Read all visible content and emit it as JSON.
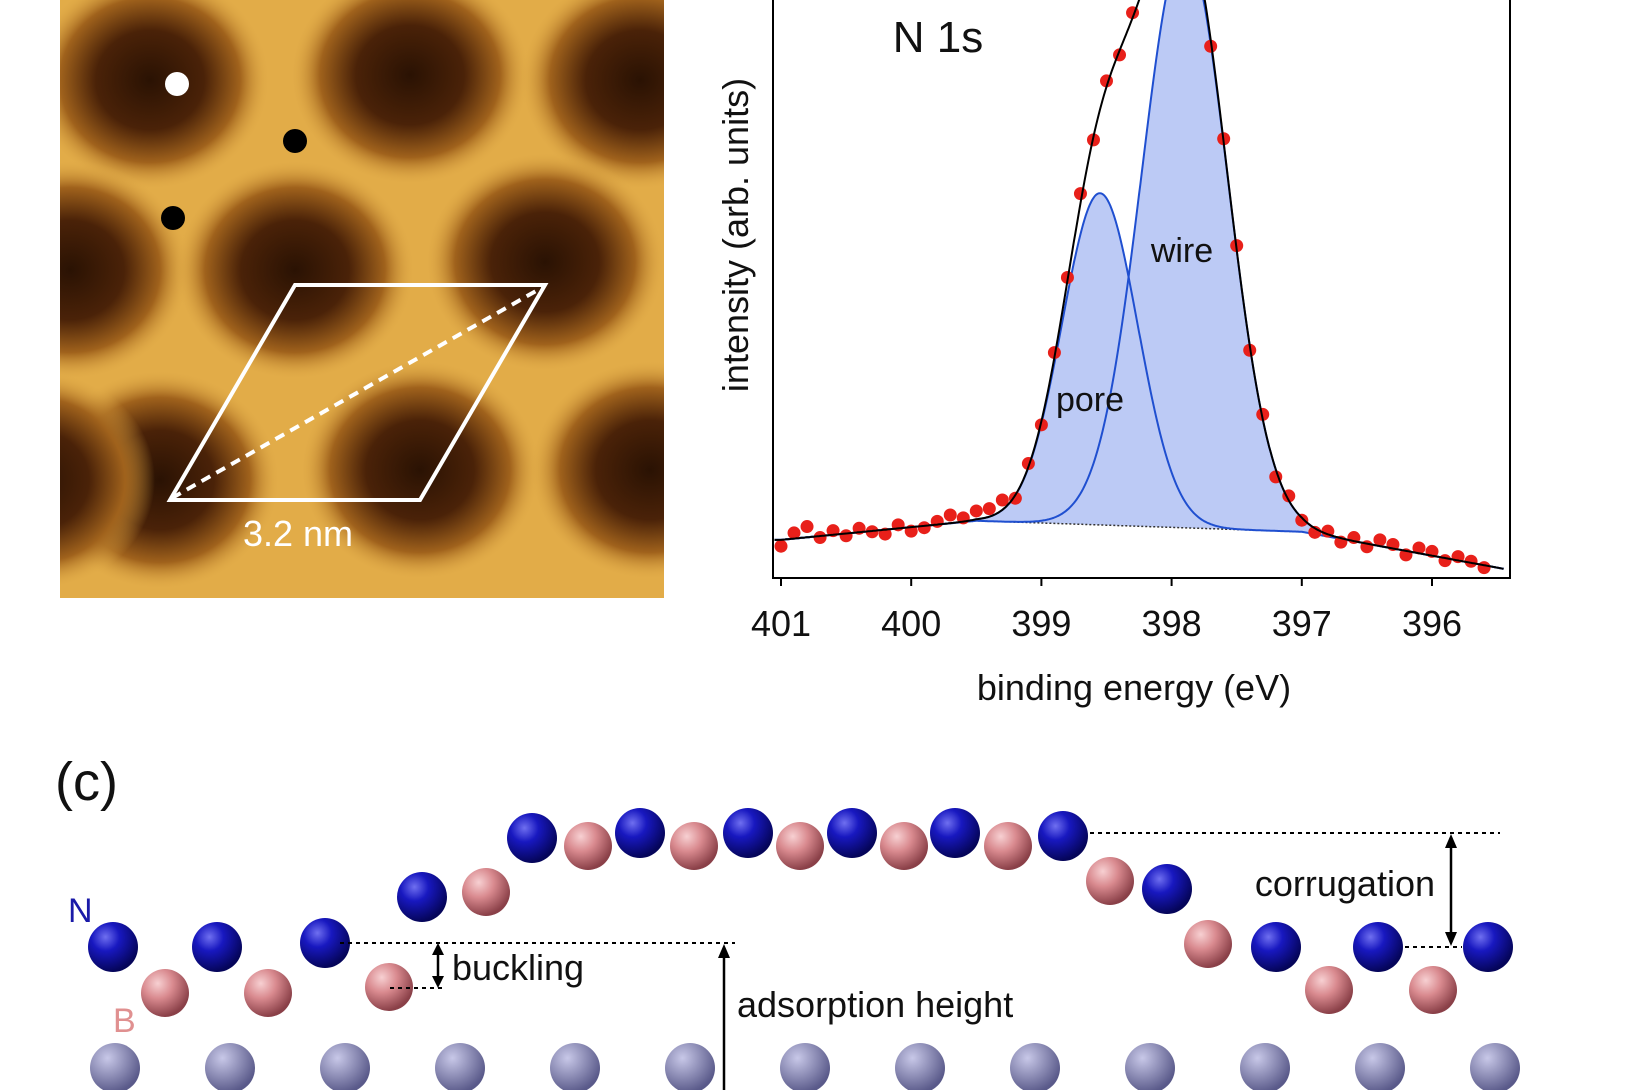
{
  "stm_image": {
    "scale_label": "3.2 nm",
    "colors": {
      "surface": "#e2ac48",
      "pore": "#2e1404"
    }
  },
  "chart_data": {
    "type": "scatter",
    "title": "N 1s",
    "xlabel": "binding energy (eV)",
    "ylabel": "intensity (arb. units)",
    "xlim": [
      401.07,
      395.4
    ],
    "x_reversed": true,
    "ylim": [
      0,
      100
    ],
    "xticks": [
      401,
      400,
      399,
      398,
      397,
      396
    ],
    "grid": false,
    "annotations": [
      "wire",
      "pore"
    ],
    "background": [
      [
        401.0,
        6.6
      ],
      [
        399.5,
        9.9
      ],
      [
        397.0,
        8.0
      ],
      [
        395.5,
        1.8
      ]
    ],
    "components": [
      {
        "label": "pore",
        "center": 398.55,
        "height": 57.4,
        "sigma": 0.29
      },
      {
        "label": "wire",
        "center": 397.9,
        "height": 100.7,
        "sigma": 0.33
      }
    ],
    "series": [
      {
        "kind": "measured",
        "color": "#e8201a",
        "x": [
          401.0,
          400.9,
          400.8,
          400.7,
          400.6,
          400.5,
          400.4,
          400.3,
          400.2,
          400.1,
          400.0,
          399.9,
          399.8,
          399.7,
          399.6,
          399.5,
          399.4,
          399.3,
          399.2,
          399.1,
          399.0,
          398.9,
          398.8,
          398.7,
          398.6,
          398.5,
          398.4,
          398.3,
          397.7,
          397.6,
          397.5,
          397.4,
          397.3,
          397.2,
          397.1,
          397.0,
          396.9,
          396.8,
          396.7,
          396.6,
          396.5,
          396.4,
          396.3,
          396.2,
          396.1,
          396.0,
          395.9,
          395.8,
          395.7,
          395.6
        ],
        "y": [
          5.5,
          7.8,
          8.9,
          7.0,
          8.2,
          7.3,
          8.6,
          8.0,
          7.6,
          9.2,
          8.1,
          8.7,
          9.8,
          10.9,
          10.4,
          11.6,
          12.0,
          13.5,
          13.8,
          19.8,
          26.5,
          39.0,
          52.0,
          66.5,
          75.8,
          86.0,
          90.5,
          97.8,
          92.0,
          76.0,
          57.5,
          39.4,
          28.3,
          17.5,
          14.2,
          10.0,
          7.9,
          8.1,
          6.2,
          7.0,
          5.4,
          6.6,
          5.8,
          4.0,
          5.2,
          4.6,
          3.0,
          3.7,
          2.9,
          1.8
        ]
      },
      {
        "kind": "fit-envelope",
        "color": "#000000"
      },
      {
        "kind": "components",
        "color": "#1f4fd0",
        "fill": "#bccaf5"
      }
    ]
  },
  "structure": {
    "panel_label": "(c)",
    "atom_labels": {
      "n": "N",
      "b": "B"
    },
    "colors": {
      "n": "#1a1aa8",
      "b": "#d98a8f"
    },
    "annotations": {
      "buckling": "buckling",
      "corrugation": "corrugation",
      "adsorption_height": "adsorption height"
    }
  }
}
